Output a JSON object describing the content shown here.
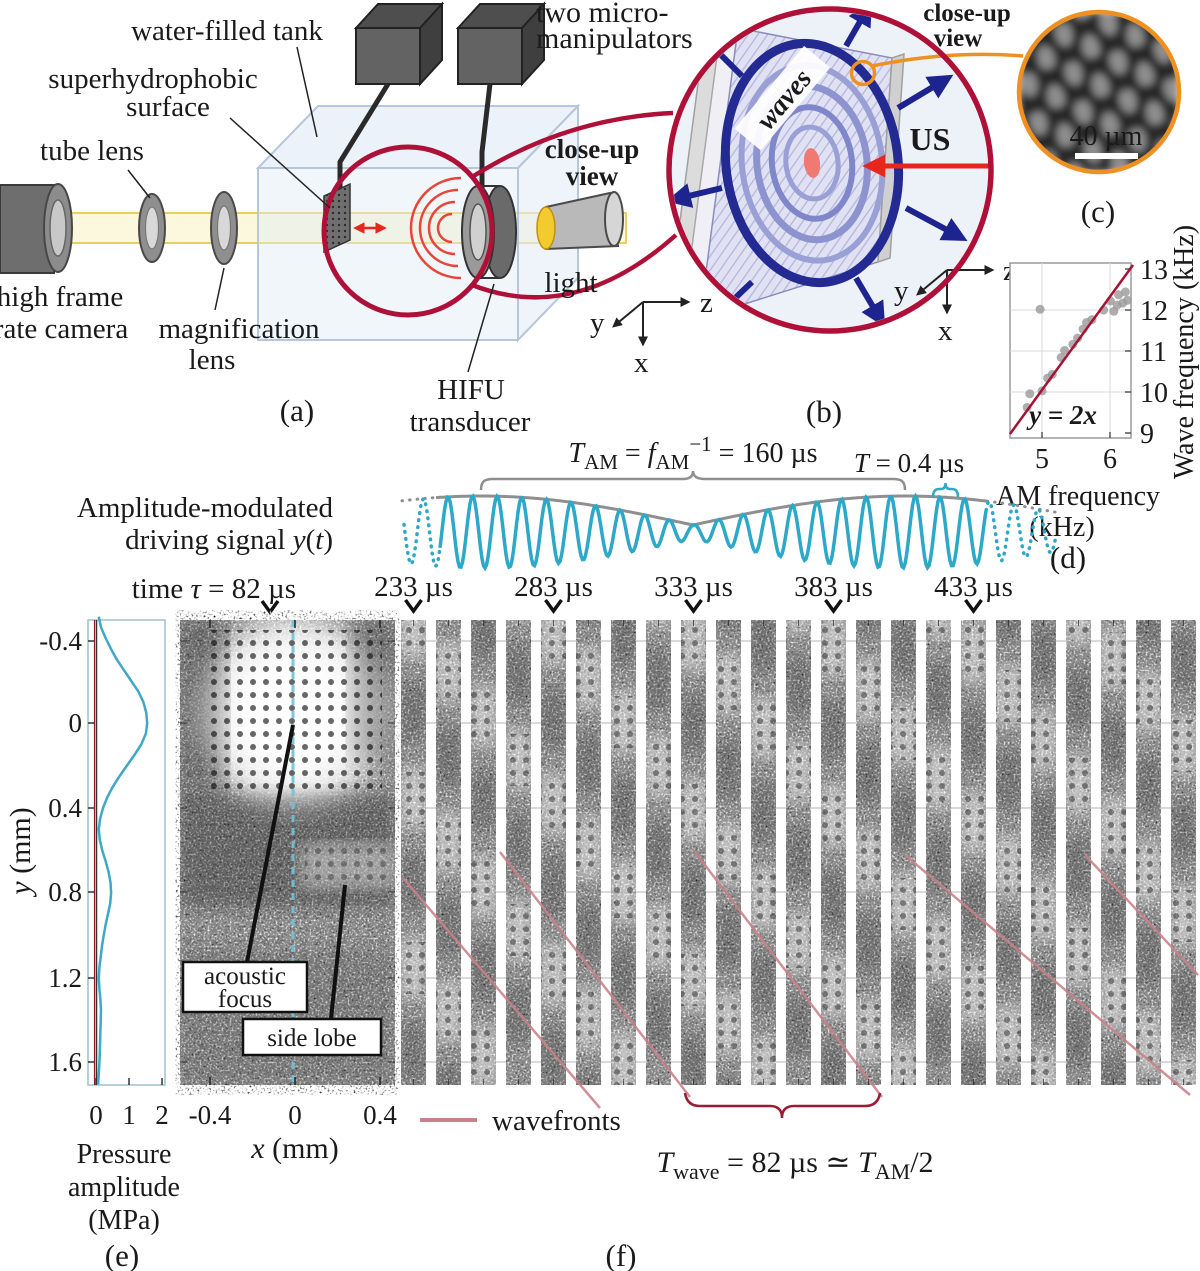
{
  "colors": {
    "crimson": "#ae1038",
    "orange": "#ef9022",
    "cyan": "#2ea8c9",
    "grey_envelope": "#8f8f8f",
    "dark_red": "#9c1b32",
    "pink_wavefront": "#c9818a",
    "navy": "#1d2490",
    "red": "#e8261b"
  },
  "panel_a": {
    "tag": "(a)",
    "labels": {
      "water_tank": "water-filled tank",
      "superhydrophobic_1": "superhydrophobic",
      "superhydrophobic_2": "surface",
      "tube_lens": "tube lens",
      "camera_1": "high frame",
      "camera_2": "rate camera",
      "mag_lens_1": "magnification",
      "mag_lens_2": "lens",
      "hifu_1": "HIFU",
      "hifu_2": "transducer",
      "light": "light",
      "micromanip_1": "two micro-",
      "micromanip_2": "manipulators",
      "closeup_1": "close-up",
      "closeup_2": "view"
    },
    "axes": {
      "x": "x",
      "y": "y",
      "z": "z"
    }
  },
  "panel_b": {
    "tag": "(b)",
    "waves": "waves",
    "us": "US",
    "closeup_1": "close-up",
    "closeup_2": "view",
    "axes": {
      "x": "x",
      "y": "y",
      "z": "z"
    }
  },
  "panel_c": {
    "tag": "(c)",
    "scale_bar": "40 µm"
  },
  "panel_d": {
    "tag": "(d)",
    "fit_label": "y = 2x",
    "xlabel_1": "AM frequency",
    "xlabel_2": "(kHz)",
    "ylabel": "Wave frequency (kHz)",
    "x_ticks": [
      "5",
      "6"
    ],
    "y_ticks": [
      "9",
      "10",
      "11",
      "12",
      "13"
    ]
  },
  "signal": {
    "label_1": "Amplitude-modulated",
    "label_2a": "driving signal ",
    "label_2b": "y",
    "label_2c": "(",
    "label_2d": "t",
    "label_2e": ")",
    "tam": {
      "T": "T",
      "sub1": "AM",
      "eq1": " = ",
      "f": "f",
      "sub2": "AM",
      "sup": "−1",
      "eq2": " = 160 µs"
    },
    "t_carrier": {
      "T": "T",
      "rest": " = 0.4 µs"
    }
  },
  "timeline": {
    "time_pre": "time ",
    "tau": "τ",
    "time_post": " = 82 µs",
    "frame_labels": [
      "233 µs",
      "283 µs",
      "333 µs",
      "383 µs",
      "433 µs"
    ]
  },
  "panel_e": {
    "tag": "(e)",
    "y_ticks": [
      "-0.4",
      "0",
      "0.4",
      "0.8",
      "1.2",
      "1.6"
    ],
    "x_ticks": [
      "0",
      "1",
      "2"
    ],
    "ylabel_var": "y",
    "ylabel_unit": " (mm)",
    "xlabel_1": "Pressure",
    "xlabel_2": "amplitude",
    "xlabel_3": "(MPa)"
  },
  "panel_f": {
    "tag": "(f)",
    "main_x_ticks": [
      "-0.4",
      "0",
      "0.4"
    ],
    "xlabel_var": "x",
    "xlabel_unit": " (mm)",
    "annot_focus_1": "acoustic",
    "annot_focus_2": "focus",
    "annot_side": "side lobe",
    "wavefronts": "wavefronts",
    "twave": {
      "T1": "T",
      "sub1": "wave",
      "mid": " = 82 µs ≃ ",
      "T2": "T",
      "sub2": "AM",
      "end": "/2"
    },
    "strip_count": 23
  },
  "chart_data": [
    {
      "id": "wave_vs_am_frequency",
      "type": "scatter",
      "title": "",
      "xlabel": "AM frequency (kHz)",
      "ylabel": "Wave frequency (kHz)",
      "xlim": [
        4.53,
        6.3
      ],
      "ylim": [
        9,
        13.1
      ],
      "grid": true,
      "legend": "none",
      "points": [
        [
          4.78,
          9.62
        ],
        [
          4.82,
          9.95
        ],
        [
          4.97,
          12.0
        ],
        [
          5.0,
          10.02
        ],
        [
          5.08,
          10.33
        ],
        [
          5.15,
          10.42
        ],
        [
          5.28,
          10.83
        ],
        [
          5.33,
          11.0
        ],
        [
          5.45,
          11.15
        ],
        [
          5.52,
          11.3
        ],
        [
          5.6,
          11.52
        ],
        [
          5.65,
          11.68
        ],
        [
          5.73,
          11.75
        ],
        [
          5.9,
          11.98
        ],
        [
          6.0,
          12.2
        ],
        [
          6.05,
          11.95
        ],
        [
          6.1,
          12.1
        ],
        [
          6.12,
          12.35
        ],
        [
          6.18,
          12.15
        ],
        [
          6.22,
          12.42
        ],
        [
          6.25,
          12.22
        ]
      ],
      "fit_line": {
        "label": "y = 2x",
        "slope": 2,
        "intercept": 0
      }
    },
    {
      "id": "pressure_profile",
      "type": "line",
      "xlabel": "Pressure amplitude (MPa)",
      "ylabel": "y (mm)",
      "xlim": [
        0,
        2.05
      ],
      "ylim": [
        -0.5,
        1.72
      ],
      "points_y_mm_vs_mpa": [
        [
          -0.5,
          0.07
        ],
        [
          -0.45,
          0.14
        ],
        [
          -0.4,
          0.28
        ],
        [
          -0.35,
          0.44
        ],
        [
          -0.3,
          0.62
        ],
        [
          -0.25,
          0.84
        ],
        [
          -0.2,
          1.06
        ],
        [
          -0.15,
          1.28
        ],
        [
          -0.1,
          1.44
        ],
        [
          -0.05,
          1.53
        ],
        [
          0,
          1.56
        ],
        [
          0.05,
          1.52
        ],
        [
          0.1,
          1.38
        ],
        [
          0.15,
          1.17
        ],
        [
          0.2,
          0.94
        ],
        [
          0.25,
          0.71
        ],
        [
          0.3,
          0.5
        ],
        [
          0.35,
          0.33
        ],
        [
          0.4,
          0.2
        ],
        [
          0.45,
          0.11
        ],
        [
          0.5,
          0.07
        ],
        [
          0.55,
          0.1
        ],
        [
          0.6,
          0.18
        ],
        [
          0.65,
          0.28
        ],
        [
          0.7,
          0.37
        ],
        [
          0.75,
          0.43
        ],
        [
          0.8,
          0.45
        ],
        [
          0.85,
          0.42
        ],
        [
          0.9,
          0.35
        ],
        [
          0.95,
          0.28
        ],
        [
          1,
          0.22
        ],
        [
          1.05,
          0.17
        ],
        [
          1.1,
          0.13
        ],
        [
          1.15,
          0.09
        ],
        [
          1.2,
          0.07
        ],
        [
          1.25,
          0.09
        ],
        [
          1.3,
          0.12
        ],
        [
          1.35,
          0.14
        ],
        [
          1.4,
          0.13
        ],
        [
          1.45,
          0.12
        ],
        [
          1.5,
          0.11
        ],
        [
          1.55,
          0.1
        ],
        [
          1.6,
          0.09
        ],
        [
          1.65,
          0.07
        ],
        [
          1.7,
          0.05
        ]
      ]
    },
    {
      "id": "driving_signal",
      "type": "line",
      "title": "Amplitude-modulated driving signal y(t)",
      "am_period_us": 160,
      "carrier_period_us": 0.4,
      "wave_period_us": 82
    }
  ]
}
